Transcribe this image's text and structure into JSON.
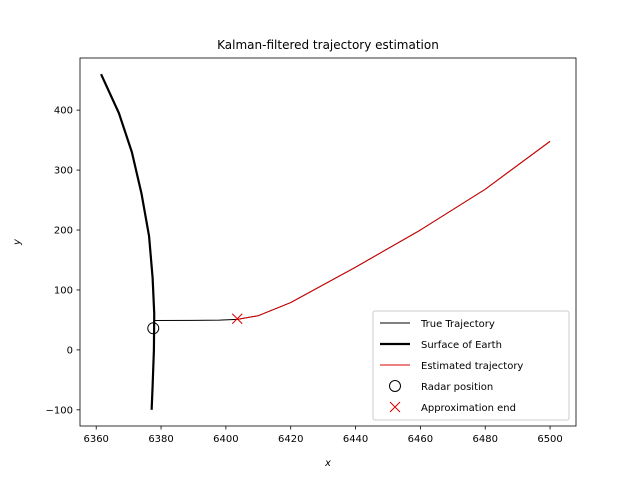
{
  "chart_data": {
    "type": "line",
    "title": "Kalman-filtered trajectory estimation",
    "xlabel": "x",
    "ylabel": "y",
    "xlim": [
      6355,
      6508
    ],
    "ylim": [
      -127,
      487
    ],
    "xticks": [
      6360,
      6380,
      6400,
      6420,
      6440,
      6460,
      6480,
      6500
    ],
    "yticks": [
      -100,
      0,
      100,
      200,
      300,
      400
    ],
    "xtick_labels": [
      "6360",
      "6380",
      "6400",
      "6420",
      "6440",
      "6460",
      "6480",
      "6500"
    ],
    "ytick_labels": [
      "−100",
      "0",
      "100",
      "200",
      "300",
      "400"
    ],
    "grid": false,
    "legend_position": "lower right",
    "series": [
      {
        "name": "True Trajectory",
        "kind": "line",
        "color": "#000000",
        "points": [
          [
            6377.9,
            49
          ],
          [
            6390,
            49.2
          ],
          [
            6398,
            49.6
          ],
          [
            6403.5,
            51
          ],
          [
            6410,
            57
          ],
          [
            6420,
            79
          ],
          [
            6440,
            138
          ],
          [
            6460,
            200
          ],
          [
            6480,
            268
          ],
          [
            6500,
            348
          ]
        ]
      },
      {
        "name": "Surface of Earth",
        "kind": "line",
        "color": "#000000",
        "thick": true,
        "points": [
          [
            6361.5,
            460
          ],
          [
            6367,
            395
          ],
          [
            6371,
            330
          ],
          [
            6374,
            260
          ],
          [
            6376.3,
            190
          ],
          [
            6377.4,
            120
          ],
          [
            6377.9,
            60
          ],
          [
            6377.8,
            0
          ],
          [
            6377.4,
            -60
          ],
          [
            6377.1,
            -100
          ]
        ]
      },
      {
        "name": "Estimated trajectory",
        "kind": "line",
        "color": "#dd0000",
        "points": [
          [
            6403.5,
            51
          ],
          [
            6410,
            57
          ],
          [
            6420,
            79
          ],
          [
            6440,
            138
          ],
          [
            6460,
            200
          ],
          [
            6480,
            268
          ],
          [
            6500,
            348
          ]
        ]
      },
      {
        "name": "Radar position",
        "kind": "marker",
        "marker": "circle",
        "color": "#000000",
        "points": [
          [
            6377.6,
            36
          ]
        ]
      },
      {
        "name": "Approximation end",
        "kind": "marker",
        "marker": "x",
        "color": "#dd0000",
        "points": [
          [
            6403.5,
            52
          ]
        ]
      }
    ]
  }
}
